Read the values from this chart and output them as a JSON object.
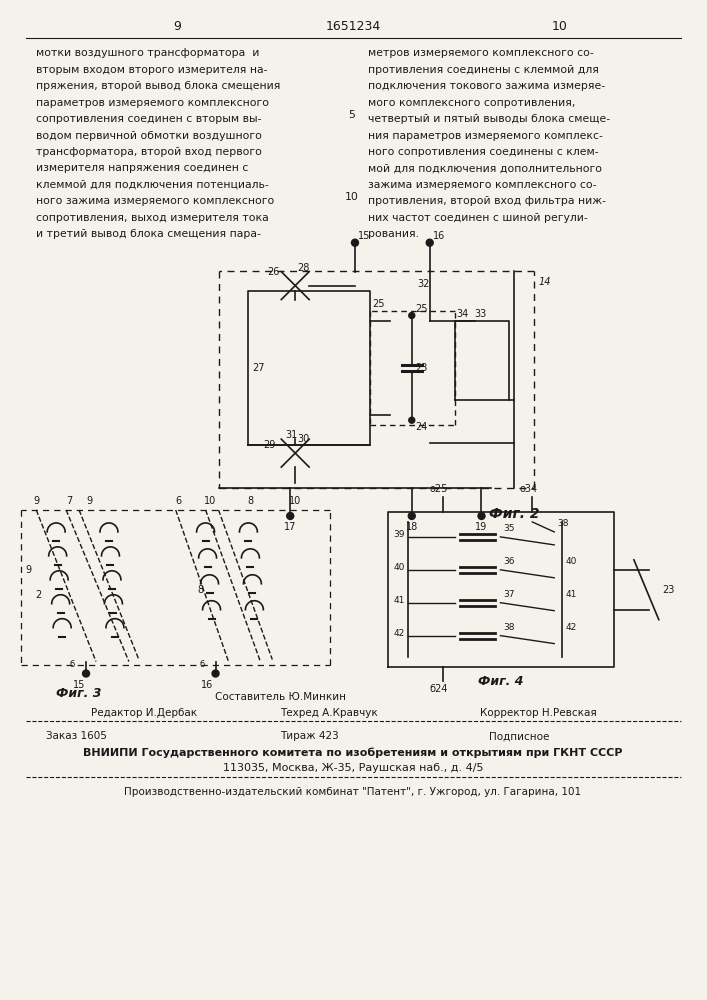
{
  "page_width": 7.07,
  "page_height": 10.0,
  "bg_color": "#f5f2ec",
  "text_color": "#1a1a1a",
  "line_color": "#1a1a1a",
  "page_num_left": "9",
  "page_num_center": "1651234",
  "page_num_right": "10",
  "text_col1": [
    "мотки воздушного трансформатора  и",
    "вторым входом второго измерителя на-",
    "пряжения, второй вывод блока смещения",
    "параметров измеряемого комплексного",
    "сопротивления соединен с вторым вы-",
    "водом первичной обмотки воздушного",
    "трансформатора, второй вход первого",
    "измерителя напряжения соединен с",
    "клеммой для подключения потенциаль-",
    "ного зажима измеряемого комплексного",
    "сопротивления, выход измерителя тока",
    "и третий вывод блока смещения пара-"
  ],
  "text_col2": [
    "метров измеряемого комплексного со-",
    "противления соединены с клеммой для",
    "подключения токового зажима измеряе-",
    "мого комплексного сопротивления,",
    "четвертый и пятый выводы блока смеще-",
    "ния параметров измеряемого комплекс-",
    "ного сопротивления соединены с клем-",
    "мой для подключения дополнительного",
    "зажима измеряемого комплексного со-",
    "противления, второй вход фильтра ниж-",
    "них частот соединен с шиной регули-",
    "рования."
  ],
  "fig2_label": "Фиг. 2",
  "fig3_label": "Фиг. 3",
  "fig4_label": "Фиг. 4",
  "compiler_line": "Составитель Ю.Минкин",
  "editor_label": "Редактор И.Дербак",
  "tehred_label": "Техред А.Кравчук",
  "korrektor_label": "Корректор Н.Ревская",
  "order_text": "Заказ 1605",
  "tirazh_text": "Тираж 423",
  "podpisnoe_text": "Подписное",
  "org_line1": "ВНИИПИ Государственного комитета по изобретениям и открытиям при ГКНТ СССР",
  "org_line2": "113035, Москва, Ж-35, Раушская наб., д. 4/5",
  "factory_line": "Производственно-издательский комбинат \"Патент\", г. Ужгород, ул. Гагарина, 101",
  "font_size_body": 7.8,
  "font_size_header": 9.0,
  "font_size_footer": 7.5,
  "font_size_fig": 7.0
}
